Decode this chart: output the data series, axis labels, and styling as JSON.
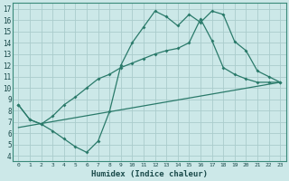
{
  "xlabel": "Humidex (Indice chaleur)",
  "bg_color": "#cce8e8",
  "grid_color": "#aacccc",
  "line_color": "#2a7a6a",
  "xlim": [
    -0.5,
    23.5
  ],
  "ylim": [
    3.5,
    17.5
  ],
  "xticks": [
    0,
    1,
    2,
    3,
    4,
    5,
    6,
    7,
    8,
    9,
    10,
    11,
    12,
    13,
    14,
    15,
    16,
    17,
    18,
    19,
    20,
    21,
    22,
    23
  ],
  "yticks": [
    4,
    5,
    6,
    7,
    8,
    9,
    10,
    11,
    12,
    13,
    14,
    15,
    16,
    17
  ],
  "line1_x": [
    0,
    1,
    2,
    3,
    4,
    5,
    6,
    7,
    8,
    9,
    10,
    11,
    12,
    13,
    14,
    15,
    16,
    17,
    18,
    19,
    20,
    21,
    22,
    23
  ],
  "line1_y": [
    8.5,
    7.2,
    6.8,
    6.2,
    5.5,
    4.8,
    4.3,
    5.3,
    7.9,
    12.0,
    14.0,
    15.4,
    16.8,
    16.3,
    15.5,
    16.5,
    15.8,
    16.8,
    16.5,
    14.1,
    13.3,
    11.5,
    11.0,
    10.5
  ],
  "line2_x": [
    0,
    1,
    2,
    3,
    4,
    5,
    6,
    7,
    8,
    9,
    10,
    11,
    12,
    13,
    14,
    15,
    16,
    17,
    18,
    19,
    20,
    21,
    22,
    23
  ],
  "line2_y": [
    8.5,
    7.2,
    6.8,
    7.5,
    8.5,
    9.2,
    10.0,
    10.8,
    11.2,
    11.8,
    12.2,
    12.6,
    13.0,
    13.3,
    13.5,
    14.0,
    16.1,
    14.2,
    11.8,
    11.2,
    10.8,
    10.5,
    10.5,
    10.5
  ],
  "line3_x": [
    0,
    23
  ],
  "line3_y": [
    6.5,
    10.5
  ]
}
